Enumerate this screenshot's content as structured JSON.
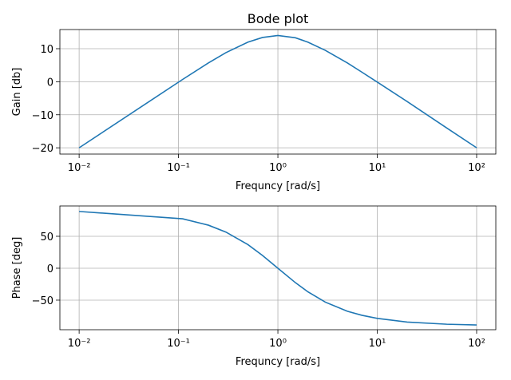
{
  "chart_data": [
    {
      "type": "line",
      "title": "Bode plot",
      "x_label": "Frequncy [rad/s]",
      "y_label": "Gain [db]",
      "x": [
        0.01,
        0.11,
        0.2,
        0.3,
        0.5,
        0.7,
        1,
        1.5,
        2,
        3,
        5,
        7,
        10,
        20,
        50,
        100
      ],
      "series": [
        {
          "name": "Gain",
          "color": "#1f77b4",
          "values": [
            -20.0,
            0.7,
            5.7,
            8.8,
            12.0,
            13.4,
            14.0,
            13.3,
            12.0,
            9.5,
            5.7,
            2.9,
            -0.1,
            -6.0,
            -14.0,
            -20.0
          ]
        }
      ],
      "x_scale": "log",
      "grid": true,
      "xlim": [
        0.0064,
        156
      ],
      "xticks": [
        {
          "value": 0.01,
          "label": "10⁻²"
        },
        {
          "value": 0.1,
          "label": "10⁻¹"
        },
        {
          "value": 1,
          "label": "10⁰"
        },
        {
          "value": 10,
          "label": "10¹"
        },
        {
          "value": 100,
          "label": "10²"
        }
      ],
      "ylim": [
        -21.9,
        15.8
      ],
      "yticks": [
        {
          "value": -20,
          "label": "−20"
        },
        {
          "value": -10,
          "label": "−10"
        },
        0,
        10
      ]
    },
    {
      "type": "line",
      "x_label": "Frequncy [rad/s]",
      "y_label": "Phase [deg]",
      "x": [
        0.01,
        0.11,
        0.2,
        0.3,
        0.5,
        0.7,
        1,
        1.5,
        2,
        3,
        5,
        7,
        10,
        20,
        50,
        100
      ],
      "series": [
        {
          "name": "Phase",
          "color": "#1f77b4",
          "values": [
            88.9,
            77.4,
            67.4,
            56.6,
            36.9,
            20.0,
            0,
            -22.6,
            -36.9,
            -53.1,
            -67.4,
            -73.7,
            -78.6,
            -84.3,
            -87.7,
            -88.9
          ]
        }
      ],
      "x_scale": "log",
      "grid": true,
      "xlim": [
        0.0064,
        156
      ],
      "xticks": [
        {
          "value": 0.01,
          "label": "10⁻²"
        },
        {
          "value": 0.1,
          "label": "10⁻¹"
        },
        {
          "value": 1,
          "label": "10⁰"
        },
        {
          "value": 10,
          "label": "10¹"
        },
        {
          "value": 100,
          "label": "10²"
        }
      ],
      "ylim": [
        -96.3,
        97.5
      ],
      "yticks": [
        {
          "value": -50,
          "label": "−50"
        },
        0,
        50
      ]
    }
  ]
}
